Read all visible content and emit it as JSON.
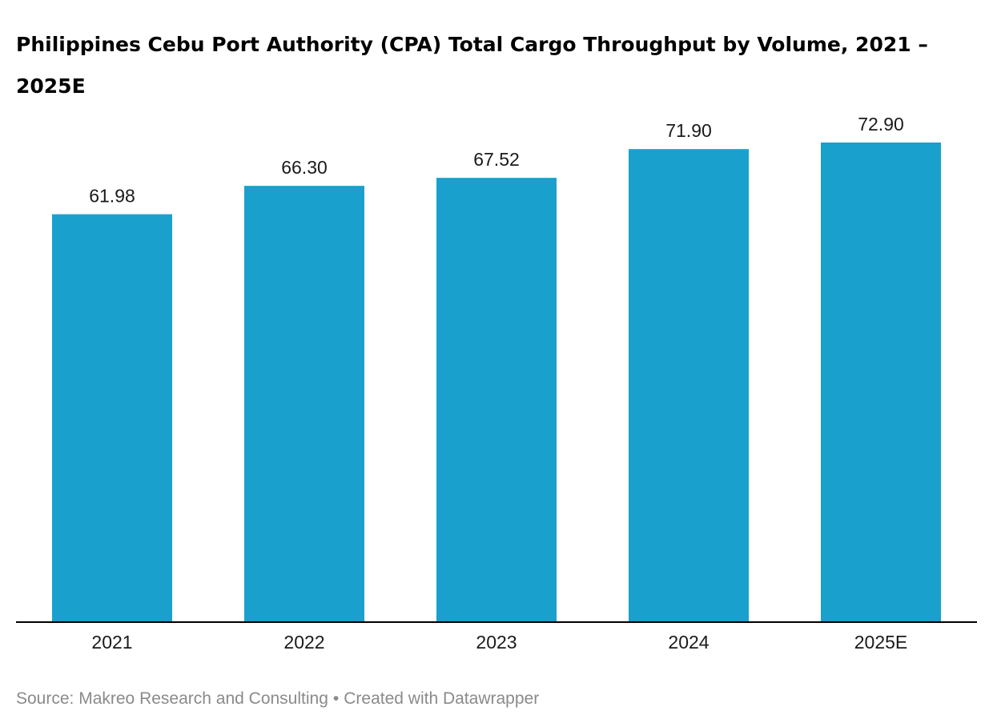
{
  "chart_data": {
    "type": "bar",
    "title": "Philippines Cebu Port Authority (CPA) Total Cargo Throughput by Volume, 2021 – 2025E",
    "categories": [
      "2021",
      "2022",
      "2023",
      "2024",
      "2025E"
    ],
    "values": [
      61.98,
      66.3,
      67.52,
      71.9,
      72.9
    ],
    "value_labels": [
      "61.98",
      "66.30",
      "67.52",
      "71.90",
      "72.90"
    ],
    "xlabel": "",
    "ylabel": "",
    "ylim": [
      0,
      72.9
    ],
    "grid": false,
    "legend": "none",
    "colors": {
      "bar": "#1aa0cc",
      "baseline": "#000000"
    }
  },
  "footer": {
    "source": "Source: Makreo Research and Consulting",
    "separator": "•",
    "credit": "Created with Datawrapper"
  }
}
